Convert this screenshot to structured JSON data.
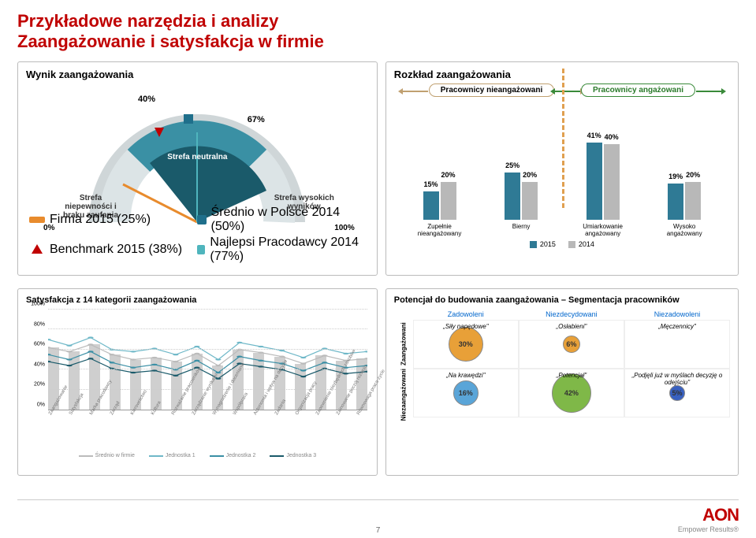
{
  "header": {
    "title1": "Przykładowe narzędzia i analizy",
    "title2": "Zaangażowanie i satysfakcja w firmie"
  },
  "gauge": {
    "title": "Wynik zaangażowania",
    "center_value": "67%",
    "indicator_value": "40%",
    "zones": {
      "neutral": "Strefa neutralna",
      "uncertainty": "Strefa niepewności i braku zaufania",
      "high": "Strefa wysokich wyników"
    },
    "min_label": "0%",
    "max_label": "100%",
    "legend": {
      "firma": "Firma 2015 (25%)",
      "benchmark": "Benchmark 2015 (38%)",
      "srednio": "Średnio w Polsce 2014 (50%)",
      "najlepsi": "Najlepsi Pracodawcy 2014 (77%)"
    },
    "colors": {
      "inner_dark": "#1a5a6a",
      "inner_neutral": "#3a90a4",
      "inner_high": "#7ab8c4",
      "outer": "#cfd6d8",
      "needle_orange": "#e88b2d",
      "needle_red": "#c00000",
      "marker_blue": "#1f6f8b"
    }
  },
  "distribution": {
    "title": "Rozkład zaangażowania",
    "left_pill": "Pracownicy nieangażowani",
    "right_pill": "Pracownicy angażowani",
    "categories": [
      "Zupełnie nieangażowany",
      "Bierny",
      "Umiarkowanie angażowany",
      "Wysoko angażowany"
    ],
    "series": [
      {
        "name": "2015",
        "color": "#2f7a95",
        "values": [
          15,
          25,
          41,
          19
        ]
      },
      {
        "name": "2014",
        "color": "#b8b8b8",
        "values": [
          20,
          20,
          40,
          20
        ]
      }
    ],
    "ymax": 50
  },
  "satisfaction": {
    "title": "Satysfakcja z 14 kategorii zaangażowania",
    "yticks": [
      "0%",
      "20%",
      "40%",
      "60%",
      "80%",
      "100%"
    ],
    "categories": [
      "Zaangażowanie",
      "Satysfakcja",
      "Marka pracodawcy",
      "Zarząd",
      "Kierownictwo",
      "Kultura",
      "Rozważanie pracowników",
      "Zarządzanie wynikami",
      "Wynagrodzenie i docenianie",
      "Współpraca",
      "Autonomia i wpływ na decyzje",
      "Zadania",
      "Organizacja pracy",
      "Zapewnienie niezbędnych zasobów",
      "Zainowanie poczój rozwoju",
      "Równowaga praca-życie"
    ],
    "bar_color": "#cfcfcf",
    "bar_values_pct": [
      62,
      58,
      65,
      55,
      50,
      52,
      48,
      56,
      44,
      60,
      57,
      53,
      46,
      54,
      49,
      51
    ],
    "lines": [
      {
        "name": "Średnio w firmie",
        "color": "#bbbbbb",
        "values": [
          62,
          58,
          65,
          55,
          50,
          52,
          48,
          56,
          44,
          60,
          57,
          53,
          46,
          54,
          49,
          51
        ]
      },
      {
        "name": "Jednostka 1",
        "color": "#6fb8c8",
        "values": [
          70,
          64,
          72,
          60,
          58,
          61,
          55,
          63,
          50,
          67,
          63,
          59,
          52,
          61,
          56,
          58
        ]
      },
      {
        "name": "Jednostka 2",
        "color": "#3a8fa5",
        "values": [
          55,
          50,
          58,
          47,
          42,
          45,
          40,
          49,
          37,
          53,
          49,
          46,
          39,
          47,
          42,
          44
        ]
      },
      {
        "name": "Jednostka 3",
        "color": "#1a5a6a",
        "values": [
          48,
          44,
          51,
          41,
          37,
          39,
          34,
          42,
          31,
          46,
          43,
          40,
          33,
          41,
          36,
          38
        ]
      }
    ]
  },
  "potential": {
    "title": "Potencjał do budowania zaangażowania – Segmentacja pracowników",
    "cols": [
      "Zadowoleni",
      "Niezdecydowani",
      "Niezadowoleni"
    ],
    "rows": [
      "Zaangażowani",
      "Niezaangażowani"
    ],
    "cells": [
      [
        {
          "label": "„Siły napędowe\"",
          "value": "30%",
          "size": 44,
          "color": "#e8a038"
        },
        {
          "label": "„Osłabieni\"",
          "value": "6%",
          "size": 22,
          "color": "#e8a038"
        },
        {
          "label": "„Męczennicy\"",
          "value": "",
          "size": 0,
          "color": ""
        }
      ],
      [
        {
          "label": "„Na krawędzi\"",
          "value": "16%",
          "size": 32,
          "color": "#5aa5d8"
        },
        {
          "label": "„Potencjał\"",
          "value": "42%",
          "size": 50,
          "color": "#7fb848"
        },
        {
          "label": "„Podjęli już w myślach decyzję o odejściu\"",
          "value": "5%",
          "size": 20,
          "color": "#3860c0"
        }
      ]
    ]
  },
  "footer": {
    "page": "7",
    "brand": "AON",
    "tagline": "Empower Results®"
  }
}
